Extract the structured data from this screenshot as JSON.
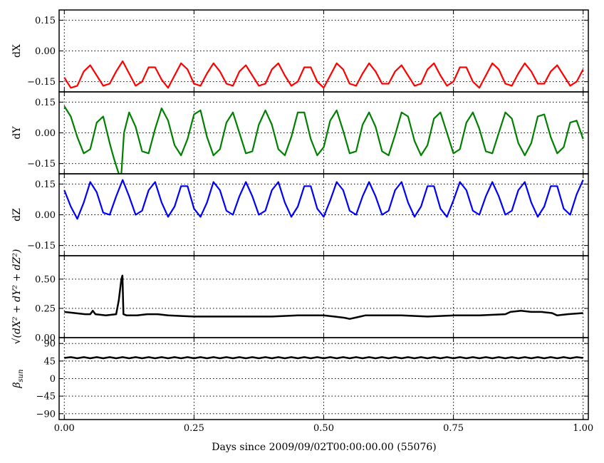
{
  "chart_data": {
    "type": "line",
    "xlabel": "Days since 2009/09/02T00:00:00.00 (55076)",
    "xlim": [
      -0.01,
      1.01
    ],
    "xticks": [
      "0.00",
      "0.25",
      "0.50",
      "0.75",
      "1.00"
    ],
    "xtick_values": [
      0.0,
      0.25,
      0.5,
      0.75,
      1.0
    ],
    "grid": true,
    "panels": [
      {
        "id": "dx",
        "ylabel": "dX",
        "color": "#ff0000",
        "ylim": [
          -0.2,
          0.2
        ],
        "yticks": [
          "0.15",
          "0.00",
          "−0.15"
        ],
        "ytick_values": [
          0.15,
          0.0,
          -0.15
        ],
        "series": {
          "x": [
            0.0,
            0.0125,
            0.025,
            0.0375,
            0.05,
            0.0625,
            0.075,
            0.0875,
            0.1,
            0.1125,
            0.125,
            0.1375,
            0.15,
            0.1625,
            0.175,
            0.1875,
            0.2,
            0.2125,
            0.225,
            0.2375,
            0.25,
            0.2625,
            0.275,
            0.2875,
            0.3,
            0.3125,
            0.325,
            0.3375,
            0.35,
            0.3625,
            0.375,
            0.3875,
            0.4,
            0.4125,
            0.425,
            0.4375,
            0.45,
            0.4625,
            0.475,
            0.4875,
            0.5,
            0.5125,
            0.525,
            0.5375,
            0.55,
            0.5625,
            0.575,
            0.5875,
            0.6,
            0.6125,
            0.625,
            0.6375,
            0.65,
            0.6625,
            0.675,
            0.6875,
            0.7,
            0.7125,
            0.725,
            0.7375,
            0.75,
            0.7625,
            0.775,
            0.7875,
            0.8,
            0.8125,
            0.825,
            0.8375,
            0.85,
            0.8625,
            0.875,
            0.8875,
            0.9,
            0.9125,
            0.925,
            0.9375,
            0.95,
            0.9625,
            0.975,
            0.9875,
            1.0
          ],
          "y": [
            -0.13,
            -0.18,
            -0.17,
            -0.1,
            -0.07,
            -0.12,
            -0.17,
            -0.16,
            -0.1,
            -0.05,
            -0.11,
            -0.17,
            -0.15,
            -0.08,
            -0.08,
            -0.14,
            -0.18,
            -0.12,
            -0.06,
            -0.09,
            -0.16,
            -0.17,
            -0.11,
            -0.06,
            -0.1,
            -0.16,
            -0.17,
            -0.1,
            -0.07,
            -0.12,
            -0.17,
            -0.16,
            -0.09,
            -0.06,
            -0.12,
            -0.17,
            -0.15,
            -0.08,
            -0.08,
            -0.15,
            -0.18,
            -0.12,
            -0.06,
            -0.09,
            -0.16,
            -0.17,
            -0.11,
            -0.06,
            -0.1,
            -0.16,
            -0.16,
            -0.1,
            -0.07,
            -0.12,
            -0.17,
            -0.16,
            -0.09,
            -0.06,
            -0.12,
            -0.17,
            -0.15,
            -0.08,
            -0.08,
            -0.15,
            -0.18,
            -0.12,
            -0.06,
            -0.09,
            -0.16,
            -0.17,
            -0.11,
            -0.06,
            -0.1,
            -0.16,
            -0.16,
            -0.1,
            -0.07,
            -0.12,
            -0.17,
            -0.15,
            -0.09
          ]
        }
      },
      {
        "id": "dy",
        "ylabel": "dY",
        "color": "#008000",
        "ylim": [
          -0.2,
          0.2
        ],
        "yticks": [
          "0.15",
          "0.00",
          "−0.15"
        ],
        "ytick_values": [
          0.15,
          0.0,
          -0.15
        ],
        "series": {
          "x": [
            0.0,
            0.0125,
            0.025,
            0.0375,
            0.05,
            0.0625,
            0.075,
            0.0875,
            0.095,
            0.1,
            0.105,
            0.11,
            0.115,
            0.125,
            0.1375,
            0.15,
            0.1625,
            0.175,
            0.1875,
            0.2,
            0.2125,
            0.225,
            0.2375,
            0.25,
            0.2625,
            0.275,
            0.2875,
            0.3,
            0.3125,
            0.325,
            0.3375,
            0.35,
            0.3625,
            0.375,
            0.3875,
            0.4,
            0.4125,
            0.425,
            0.4375,
            0.45,
            0.4625,
            0.475,
            0.4875,
            0.5,
            0.5125,
            0.525,
            0.5375,
            0.55,
            0.5625,
            0.575,
            0.5875,
            0.6,
            0.6125,
            0.625,
            0.6375,
            0.65,
            0.6625,
            0.675,
            0.6875,
            0.7,
            0.7125,
            0.725,
            0.7375,
            0.75,
            0.7625,
            0.775,
            0.7875,
            0.8,
            0.8125,
            0.825,
            0.8375,
            0.85,
            0.8625,
            0.875,
            0.8875,
            0.9,
            0.9125,
            0.925,
            0.9375,
            0.95,
            0.9625,
            0.975,
            0.9875,
            1.0
          ],
          "y": [
            0.13,
            0.08,
            -0.02,
            -0.1,
            -0.08,
            0.05,
            0.08,
            -0.05,
            -0.12,
            -0.16,
            -0.2,
            -0.2,
            0.0,
            0.1,
            0.03,
            -0.09,
            -0.1,
            0.02,
            0.12,
            0.06,
            -0.06,
            -0.11,
            -0.03,
            0.09,
            0.11,
            -0.02,
            -0.11,
            -0.08,
            0.05,
            0.1,
            0.0,
            -0.1,
            -0.09,
            0.04,
            0.11,
            0.04,
            -0.08,
            -0.11,
            -0.02,
            0.1,
            0.1,
            -0.03,
            -0.11,
            -0.07,
            0.06,
            0.11,
            0.01,
            -0.1,
            -0.09,
            0.04,
            0.1,
            0.03,
            -0.09,
            -0.11,
            -0.01,
            0.1,
            0.08,
            -0.04,
            -0.11,
            -0.06,
            0.07,
            0.1,
            0.0,
            -0.1,
            -0.08,
            0.05,
            0.1,
            0.02,
            -0.09,
            -0.1,
            0.0,
            0.1,
            0.07,
            -0.05,
            -0.11,
            -0.05,
            0.08,
            0.09,
            -0.02,
            -0.1,
            -0.07,
            0.05,
            0.06,
            -0.03
          ]
        }
      },
      {
        "id": "dz",
        "ylabel": "dZ",
        "color": "#0000ff",
        "ylim": [
          -0.2,
          0.2
        ],
        "yticks": [
          "0.15",
          "0.00",
          "−0.15"
        ],
        "ytick_values": [
          0.15,
          0.0,
          -0.15
        ],
        "series": {
          "x": [
            0.0,
            0.0125,
            0.025,
            0.0375,
            0.05,
            0.0625,
            0.075,
            0.0875,
            0.1,
            0.1125,
            0.125,
            0.1375,
            0.15,
            0.1625,
            0.175,
            0.1875,
            0.2,
            0.2125,
            0.225,
            0.2375,
            0.25,
            0.2625,
            0.275,
            0.2875,
            0.3,
            0.3125,
            0.325,
            0.3375,
            0.35,
            0.3625,
            0.375,
            0.3875,
            0.4,
            0.4125,
            0.425,
            0.4375,
            0.45,
            0.4625,
            0.475,
            0.4875,
            0.5,
            0.5125,
            0.525,
            0.5375,
            0.55,
            0.5625,
            0.575,
            0.5875,
            0.6,
            0.6125,
            0.625,
            0.6375,
            0.65,
            0.6625,
            0.675,
            0.6875,
            0.7,
            0.7125,
            0.725,
            0.7375,
            0.75,
            0.7625,
            0.775,
            0.7875,
            0.8,
            0.8125,
            0.825,
            0.8375,
            0.85,
            0.8625,
            0.875,
            0.8875,
            0.9,
            0.9125,
            0.925,
            0.9375,
            0.95,
            0.9625,
            0.975,
            0.9875,
            1.0
          ],
          "y": [
            0.12,
            0.04,
            -0.02,
            0.06,
            0.16,
            0.11,
            0.01,
            0.0,
            0.09,
            0.17,
            0.09,
            0.0,
            0.02,
            0.12,
            0.16,
            0.06,
            -0.01,
            0.04,
            0.14,
            0.14,
            0.03,
            -0.01,
            0.06,
            0.16,
            0.12,
            0.02,
            0.0,
            0.09,
            0.16,
            0.09,
            0.0,
            0.02,
            0.12,
            0.16,
            0.06,
            -0.01,
            0.04,
            0.14,
            0.14,
            0.03,
            -0.01,
            0.07,
            0.16,
            0.12,
            0.02,
            0.0,
            0.09,
            0.16,
            0.09,
            0.0,
            0.02,
            0.12,
            0.16,
            0.06,
            -0.01,
            0.04,
            0.14,
            0.14,
            0.03,
            -0.01,
            0.07,
            0.16,
            0.12,
            0.02,
            0.0,
            0.09,
            0.16,
            0.09,
            0.0,
            0.02,
            0.12,
            0.16,
            0.06,
            -0.01,
            0.04,
            0.14,
            0.14,
            0.03,
            0.0,
            0.1,
            0.17
          ]
        }
      },
      {
        "id": "mag",
        "ylabel": "√(dX² + dY² + dZ²)",
        "color": "#000000",
        "ylim": [
          0.0,
          0.7
        ],
        "yticks": [
          "0.50",
          "0.25",
          "0.00"
        ],
        "ytick_values": [
          0.5,
          0.25,
          0.0
        ],
        "series": {
          "x": [
            0.0,
            0.02,
            0.04,
            0.05,
            0.055,
            0.06,
            0.08,
            0.1,
            0.105,
            0.11,
            0.112,
            0.114,
            0.12,
            0.14,
            0.16,
            0.18,
            0.2,
            0.25,
            0.3,
            0.35,
            0.4,
            0.45,
            0.5,
            0.52,
            0.54,
            0.55,
            0.56,
            0.58,
            0.6,
            0.65,
            0.7,
            0.75,
            0.8,
            0.85,
            0.86,
            0.88,
            0.9,
            0.92,
            0.94,
            0.95,
            0.97,
            1.0
          ],
          "y": [
            0.22,
            0.21,
            0.2,
            0.2,
            0.23,
            0.2,
            0.19,
            0.2,
            0.32,
            0.5,
            0.53,
            0.2,
            0.19,
            0.19,
            0.2,
            0.2,
            0.19,
            0.18,
            0.18,
            0.18,
            0.18,
            0.19,
            0.19,
            0.18,
            0.17,
            0.16,
            0.17,
            0.19,
            0.19,
            0.19,
            0.18,
            0.19,
            0.19,
            0.2,
            0.22,
            0.23,
            0.22,
            0.22,
            0.21,
            0.19,
            0.2,
            0.21
          ]
        }
      },
      {
        "id": "beta",
        "ylabel": "β_sun",
        "color": "#000000",
        "ylim": [
          -105,
          105
        ],
        "yticks": [
          "90",
          "45",
          "0",
          "−45",
          "−90"
        ],
        "ytick_values": [
          90,
          45,
          0,
          -45,
          -90
        ],
        "series": {
          "x": [
            0.0,
            0.0125,
            0.025,
            0.0375,
            0.05,
            0.0625,
            0.075,
            0.0875,
            0.1,
            0.1125,
            0.125,
            0.1375,
            0.15,
            0.1625,
            0.175,
            0.1875,
            0.2,
            0.2125,
            0.225,
            0.2375,
            0.25,
            0.2625,
            0.275,
            0.2875,
            0.3,
            0.3125,
            0.325,
            0.3375,
            0.35,
            0.3625,
            0.375,
            0.3875,
            0.4,
            0.4125,
            0.425,
            0.4375,
            0.45,
            0.4625,
            0.475,
            0.4875,
            0.5,
            0.5125,
            0.525,
            0.5375,
            0.55,
            0.5625,
            0.575,
            0.5875,
            0.6,
            0.6125,
            0.625,
            0.6375,
            0.65,
            0.6625,
            0.675,
            0.6875,
            0.7,
            0.7125,
            0.725,
            0.7375,
            0.75,
            0.7625,
            0.775,
            0.7875,
            0.8,
            0.8125,
            0.825,
            0.8375,
            0.85,
            0.8625,
            0.875,
            0.8875,
            0.9,
            0.9125,
            0.925,
            0.9375,
            0.95,
            0.9625,
            0.975,
            0.9875,
            1.0
          ],
          "y": [
            53,
            55,
            52,
            55,
            52,
            55,
            52,
            55,
            52,
            55,
            52,
            55,
            52,
            55,
            52,
            55,
            52,
            55,
            52,
            55,
            52,
            55,
            52,
            55,
            52,
            55,
            52,
            55,
            52,
            55,
            52,
            55,
            52,
            55,
            52,
            55,
            52,
            55,
            52,
            55,
            52,
            55,
            52,
            55,
            52,
            55,
            52,
            55,
            52,
            55,
            52,
            55,
            52,
            55,
            52,
            55,
            52,
            55,
            52,
            55,
            52,
            55,
            52,
            55,
            52,
            55,
            52,
            55,
            52,
            55,
            52,
            55,
            52,
            55,
            52,
            55,
            52,
            55,
            52,
            55,
            53
          ]
        }
      }
    ]
  }
}
